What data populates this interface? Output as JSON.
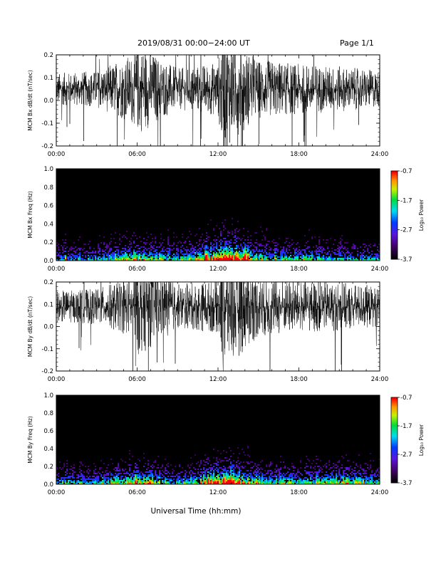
{
  "header": {
    "title": "2019/08/31  00:00−24:00 UT",
    "page": "Page 1/1"
  },
  "xlabel": "Universal Time (hh:mm)",
  "colorbar": {
    "label": "Log₁₀ Power",
    "ticks": [
      "-0.7",
      "-1.7",
      "-2.7",
      "-3.7"
    ],
    "range": [
      -3.7,
      -0.7
    ]
  },
  "colors": {
    "background": "#ffffff",
    "trace": "#000000"
  },
  "chart_data": [
    {
      "type": "line",
      "ylabel": "MCM Bx dB/dt (nT/sec)",
      "ylim": [
        -0.2,
        0.2
      ],
      "yticks": [
        "-0.2",
        "-0.1",
        "0.0",
        "0.1",
        "0.2"
      ],
      "x_range": [
        "00:00",
        "24:00"
      ],
      "xticks": [
        "00:00",
        "06:00",
        "12:00",
        "18:00",
        "24:00"
      ],
      "series": [
        {
          "baseline": 0.05,
          "envelope_hours": [
            0,
            3,
            5.8,
            6.1,
            9,
            12,
            12.4,
            13.1,
            15,
            18,
            21,
            24
          ],
          "envelope_half_width": [
            0.07,
            0.08,
            0.16,
            0.2,
            0.09,
            0.12,
            0.3,
            0.22,
            0.13,
            0.11,
            0.1,
            0.08
          ]
        }
      ]
    },
    {
      "type": "heatmap",
      "ylabel": "MCM Bx Freq (Hz)",
      "ylim": [
        0.0,
        1.0
      ],
      "yticks": [
        "0.0",
        "0.2",
        "0.4",
        "0.6",
        "0.8",
        "1.0"
      ],
      "x_range": [
        "00:00",
        "24:00"
      ],
      "xticks": [
        "00:00",
        "06:00",
        "12:00",
        "18:00",
        "24:00"
      ],
      "activity_hours": [
        0,
        3,
        6,
        9,
        12,
        13,
        15,
        18,
        21,
        24
      ],
      "activity_level": [
        0.45,
        0.4,
        0.7,
        0.45,
        0.85,
        1.0,
        0.55,
        0.5,
        0.45,
        0.4
      ]
    },
    {
      "type": "line",
      "ylabel": "MCM By dB/dt (nT/sec)",
      "ylim": [
        -0.2,
        0.2
      ],
      "yticks": [
        "-0.2",
        "-0.1",
        "0.0",
        "0.1",
        "0.2"
      ],
      "x_range": [
        "00:00",
        "24:00"
      ],
      "xticks": [
        "00:00",
        "06:00",
        "12:00",
        "18:00",
        "24:00"
      ],
      "series": [
        {
          "baseline": 0.09,
          "envelope_hours": [
            0,
            3,
            5.8,
            6.1,
            9,
            12,
            12.4,
            13.1,
            15,
            18,
            21,
            24
          ],
          "envelope_half_width": [
            0.07,
            0.08,
            0.14,
            0.22,
            0.1,
            0.12,
            0.32,
            0.25,
            0.14,
            0.12,
            0.11,
            0.09
          ]
        }
      ]
    },
    {
      "type": "heatmap",
      "ylabel": "MCM By Freq (Hz)",
      "ylim": [
        0.0,
        1.0
      ],
      "yticks": [
        "0.0",
        "0.2",
        "0.4",
        "0.6",
        "0.8",
        "1.0"
      ],
      "x_range": [
        "00:00",
        "24:00"
      ],
      "xticks": [
        "00:00",
        "06:00",
        "12:00",
        "18:00",
        "24:00"
      ],
      "activity_hours": [
        0,
        3,
        6,
        9,
        12,
        13,
        15,
        18,
        21,
        22,
        24
      ],
      "activity_level": [
        0.5,
        0.45,
        0.7,
        0.45,
        0.85,
        1.0,
        0.55,
        0.55,
        0.6,
        0.65,
        0.45
      ]
    }
  ]
}
